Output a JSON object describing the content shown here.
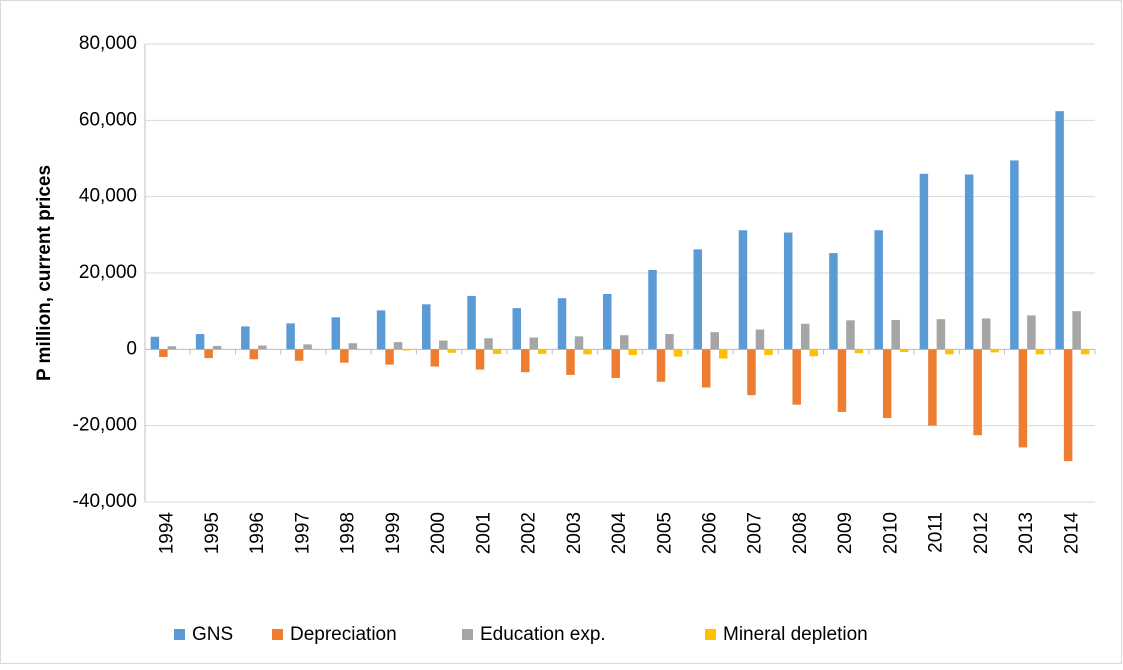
{
  "chart_data": {
    "type": "bar",
    "y_label": "P million, current prices",
    "categories": [
      "1994",
      "1995",
      "1996",
      "1997",
      "1998",
      "1999",
      "2000",
      "2001",
      "2002",
      "2003",
      "2004",
      "2005",
      "2006",
      "2007",
      "2008",
      "2009",
      "2010",
      "2011",
      "2012",
      "2013",
      "2014"
    ],
    "series": [
      {
        "name": "GNS",
        "color": "#5b9bd5",
        "values": [
          3300,
          4000,
          6000,
          6800,
          8400,
          10200,
          11800,
          14000,
          10800,
          13400,
          14500,
          20800,
          26200,
          31200,
          30600,
          25200,
          31200,
          46000,
          45800,
          49500,
          62400
        ]
      },
      {
        "name": "Depreciation",
        "color": "#ed7d31",
        "values": [
          -2000,
          -2300,
          -2600,
          -3000,
          -3500,
          -4000,
          -4500,
          -5300,
          -6000,
          -6700,
          -7500,
          -8500,
          -10000,
          -12000,
          -14500,
          -16400,
          -18000,
          -20000,
          -22500,
          -25700,
          -29300
        ]
      },
      {
        "name": "Education exp.",
        "color": "#a5a5a5",
        "values": [
          800,
          900,
          1000,
          1300,
          1600,
          1900,
          2300,
          2900,
          3100,
          3400,
          3700,
          4000,
          4500,
          5200,
          6700,
          7600,
          7700,
          7900,
          8100,
          8900,
          10000
        ]
      },
      {
        "name": "Mineral depletion",
        "color": "#ffc000",
        "values": [
          0,
          0,
          0,
          -200,
          -200,
          -300,
          -900,
          -1200,
          -1200,
          -1300,
          -1500,
          -1900,
          -2400,
          -1500,
          -1800,
          -1000,
          -700,
          -1300,
          -800,
          -1300,
          -1300
        ]
      }
    ],
    "ylim": [
      -40000,
      80000
    ],
    "yticks": [
      {
        "value": -40000,
        "label": "-40,000"
      },
      {
        "value": -20000,
        "label": "-20,000"
      },
      0,
      {
        "value": 20000,
        "label": "20,000"
      },
      {
        "value": 40000,
        "label": "40,000"
      },
      {
        "value": 60000,
        "label": "60,000"
      },
      {
        "value": 80000,
        "label": "80,000"
      }
    ],
    "grid": true,
    "legend": "bottom"
  }
}
